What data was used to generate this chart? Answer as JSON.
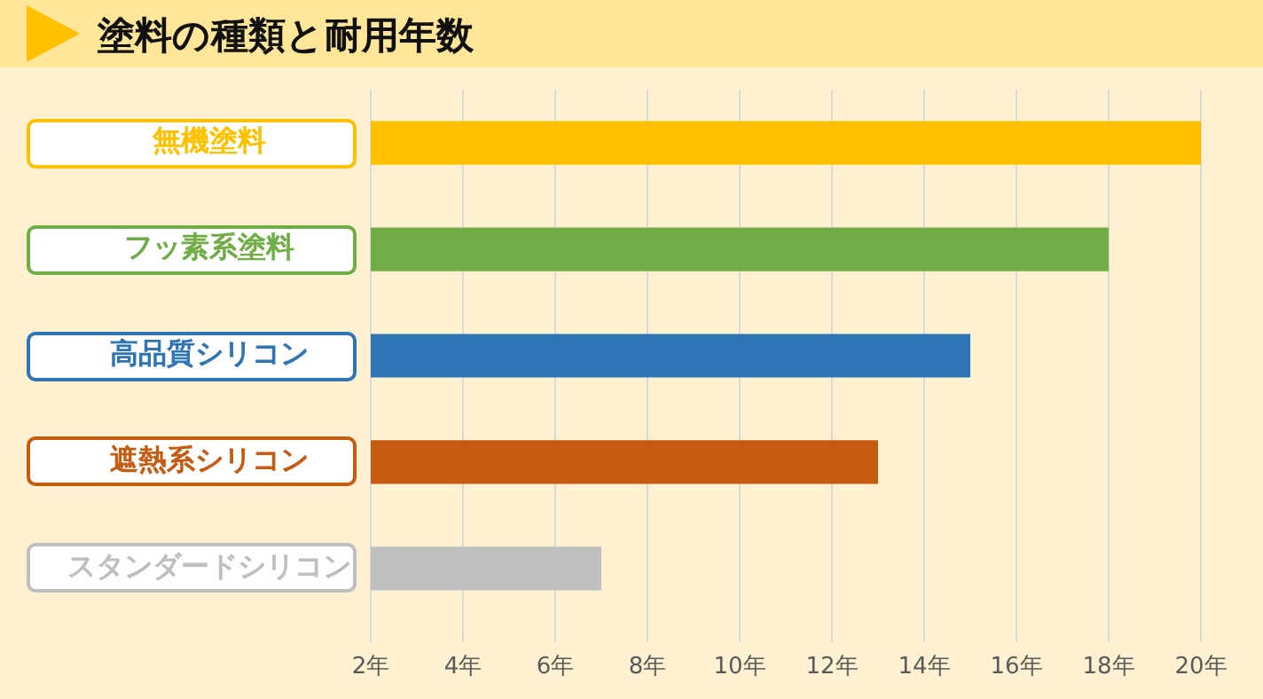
{
  "chart_data": {
    "type": "bar",
    "orientation": "horizontal",
    "title": "塗料の種類と耐用年数",
    "categories": [
      "無機塗料",
      "フッ素系塗料",
      "高品質シリコン",
      "遮熱系シリコン",
      "スタンダードシリコン"
    ],
    "values": [
      20,
      18,
      15,
      13,
      7
    ],
    "colors": [
      "#ffc000",
      "#70ad47",
      "#2e75b6",
      "#c55a11",
      "#bfbfbf"
    ],
    "xlim": [
      2,
      20
    ],
    "xticks": [
      {
        "value": 2,
        "label": "2年"
      },
      {
        "value": 4,
        "label": "4年"
      },
      {
        "value": 6,
        "label": "6年"
      },
      {
        "value": 8,
        "label": "8年"
      },
      {
        "value": 10,
        "label": "10年"
      },
      {
        "value": 12,
        "label": "12年"
      },
      {
        "value": 14,
        "label": "14年"
      },
      {
        "value": 16,
        "label": "16年"
      },
      {
        "value": 18,
        "label": "18年"
      },
      {
        "value": 20,
        "label": "20年"
      }
    ],
    "grid": "x",
    "legend": false
  }
}
